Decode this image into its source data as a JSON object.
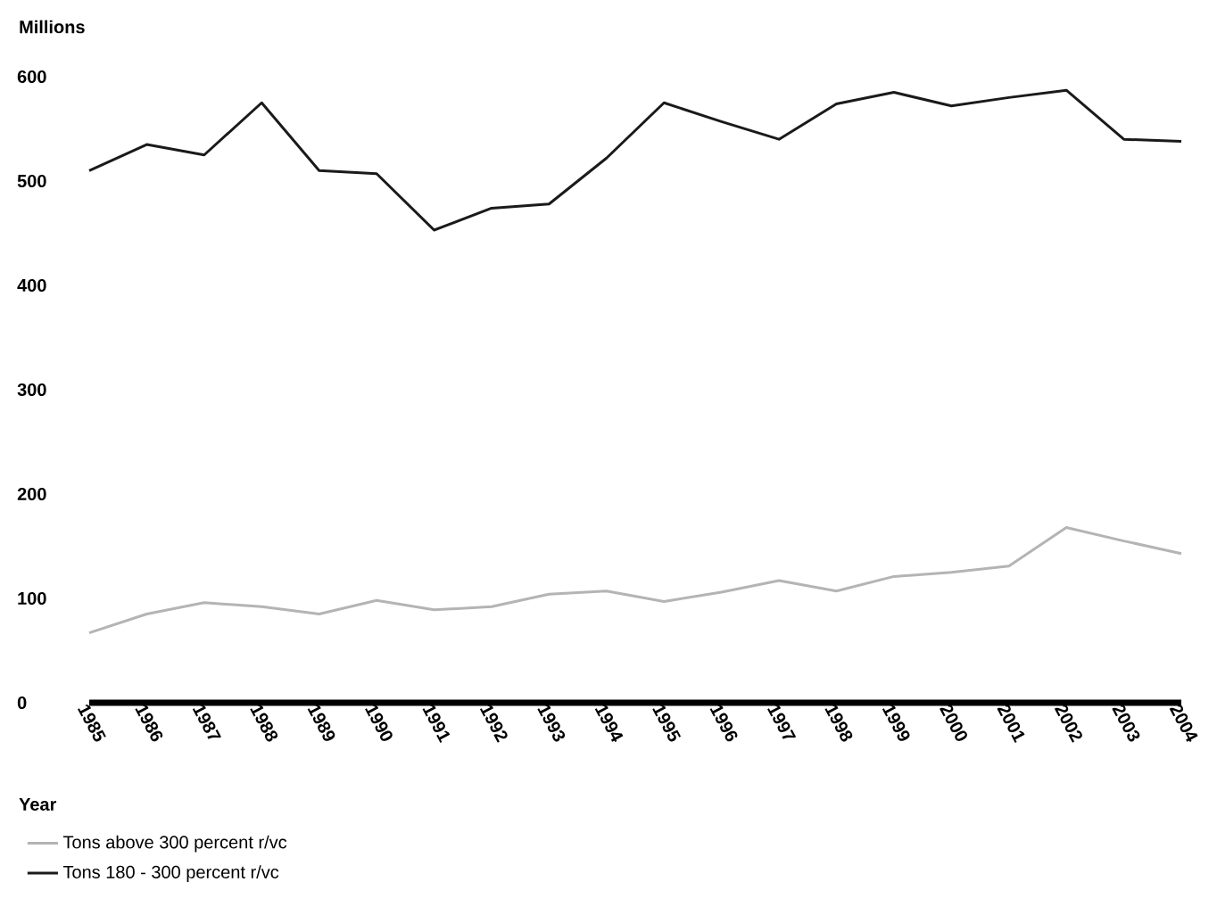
{
  "chart_data": {
    "type": "line",
    "xlabel": "Year",
    "ylabel": "Millions",
    "categories": [
      "1985",
      "1986",
      "1987",
      "1988",
      "1989",
      "1990",
      "1991",
      "1992",
      "1993",
      "1994",
      "1995",
      "1996",
      "1997",
      "1998",
      "1999",
      "2000",
      "2001",
      "2002",
      "2003",
      "2004"
    ],
    "series": [
      {
        "name": "Tons above 300 percent r/vc",
        "color": "#b4b4b4",
        "values": [
          67,
          85,
          96,
          92,
          85,
          98,
          89,
          92,
          104,
          107,
          97,
          106,
          117,
          107,
          121,
          125,
          131,
          168,
          155,
          143
        ]
      },
      {
        "name": "Tons 180 - 300 percent r/vc",
        "color": "#1a1a1a",
        "values": [
          510,
          535,
          525,
          575,
          510,
          507,
          453,
          474,
          478,
          522,
          575,
          557,
          540,
          574,
          585,
          572,
          580,
          587,
          540,
          538
        ]
      }
    ],
    "ylim": [
      0,
      600
    ],
    "yticks": [
      0,
      100,
      200,
      300,
      400,
      500,
      600
    ],
    "grid": false,
    "legend": "bottom",
    "marker": "none",
    "line_style": "solid"
  }
}
